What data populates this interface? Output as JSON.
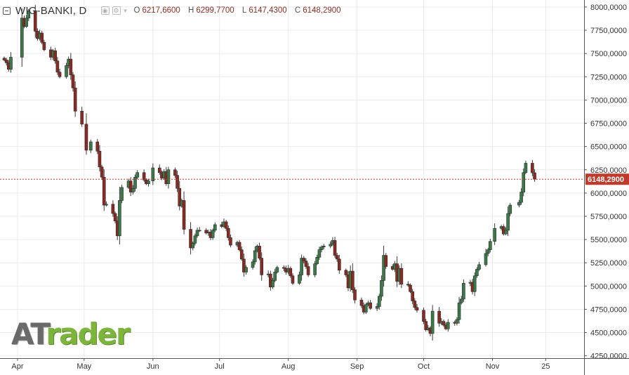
{
  "header": {
    "symbol": "WIG-BANKI, D",
    "ohlc": [
      {
        "key": "O",
        "value": "6217,6600"
      },
      {
        "key": "H",
        "value": "6299,7700"
      },
      {
        "key": "L",
        "value": "6147,4300"
      },
      {
        "key": "C",
        "value": "6148,2900"
      }
    ]
  },
  "logo": {
    "part1": "AT",
    "part2": "rader"
  },
  "colors": {
    "up": "#3a7a48",
    "down": "#8b2a22",
    "grid": "#ebebeb",
    "price_line": "#c0392b",
    "axis_text": "#333333"
  },
  "chart_data": {
    "type": "candlestick",
    "title": "WIG-BANKI, D",
    "last_price": 6148.29,
    "last_price_label": "6148,2900",
    "ylim": [
      4225,
      8075
    ],
    "y_ticks": [
      4250,
      4500,
      4750,
      5000,
      5250,
      5500,
      5750,
      6000,
      6250,
      6500,
      6750,
      7000,
      7250,
      7500,
      7750,
      8000
    ],
    "y_tick_labels": [
      "4250,0000",
      "4500,0000",
      "4750,0000",
      "5000,0000",
      "5250,0000",
      "5500,0000",
      "5750,0000",
      "6000,0000",
      "6250,0000",
      "6500,0000",
      "6750,0000",
      "7000,0000",
      "7250,0000",
      "7500,0000",
      "7750,0000",
      "8000,0000"
    ],
    "x_range": [
      "2018-03-26",
      "2018-11-29"
    ],
    "x_ticks": [
      {
        "date": "2018-04-01",
        "label": "Apr"
      },
      {
        "date": "2018-05-01",
        "label": "May"
      },
      {
        "date": "2018-06-01",
        "label": "Jun"
      },
      {
        "date": "2018-07-01",
        "label": "Jul"
      },
      {
        "date": "2018-08-01",
        "label": "Aug"
      },
      {
        "date": "2018-09-01",
        "label": "Sep"
      },
      {
        "date": "2018-10-01",
        "label": "Oct"
      },
      {
        "date": "2018-11-01",
        "label": "Nov"
      },
      {
        "date": "2018-11-25",
        "label": "25"
      }
    ],
    "grid": true,
    "closes": [
      [
        "2018-03-26",
        7430
      ],
      [
        "2018-03-27",
        7400
      ],
      [
        "2018-03-28",
        7330
      ],
      [
        "2018-03-29",
        7460
      ],
      [
        "2018-04-03",
        7880
      ],
      [
        "2018-04-04",
        7790
      ],
      [
        "2018-04-05",
        7880
      ],
      [
        "2018-04-06",
        7960
      ],
      [
        "2018-04-09",
        7740
      ],
      [
        "2018-04-10",
        7660
      ],
      [
        "2018-04-11",
        7720
      ],
      [
        "2018-04-12",
        7620
      ],
      [
        "2018-04-13",
        7540
      ],
      [
        "2018-04-16",
        7460
      ],
      [
        "2018-04-17",
        7530
      ],
      [
        "2018-04-18",
        7420
      ],
      [
        "2018-04-19",
        7300
      ],
      [
        "2018-04-20",
        7250
      ],
      [
        "2018-04-23",
        7370
      ],
      [
        "2018-04-24",
        7440
      ],
      [
        "2018-04-25",
        7270
      ],
      [
        "2018-04-26",
        7130
      ],
      [
        "2018-04-27",
        6880
      ],
      [
        "2018-04-30",
        6740
      ],
      [
        "2018-05-02",
        6460
      ],
      [
        "2018-05-04",
        6550
      ],
      [
        "2018-05-07",
        6450
      ],
      [
        "2018-05-08",
        6280
      ],
      [
        "2018-05-09",
        6170
      ],
      [
        "2018-05-10",
        5870
      ],
      [
        "2018-05-11",
        5880
      ],
      [
        "2018-05-14",
        5780
      ],
      [
        "2018-05-15",
        5700
      ],
      [
        "2018-05-16",
        5540
      ],
      [
        "2018-05-17",
        5920
      ],
      [
        "2018-05-18",
        6060
      ],
      [
        "2018-05-21",
        6130
      ],
      [
        "2018-05-22",
        6010
      ],
      [
        "2018-05-23",
        6050
      ],
      [
        "2018-05-24",
        6170
      ],
      [
        "2018-05-25",
        6220
      ],
      [
        "2018-05-28",
        6140
      ],
      [
        "2018-05-29",
        6100
      ],
      [
        "2018-05-30",
        6130
      ],
      [
        "2018-06-01",
        6270
      ],
      [
        "2018-06-04",
        6220
      ],
      [
        "2018-06-05",
        6160
      ],
      [
        "2018-06-06",
        6230
      ],
      [
        "2018-06-07",
        6100
      ],
      [
        "2018-06-08",
        6250
      ],
      [
        "2018-06-11",
        6190
      ],
      [
        "2018-06-12",
        6050
      ],
      [
        "2018-06-13",
        5860
      ],
      [
        "2018-06-14",
        5920
      ],
      [
        "2018-06-15",
        5610
      ],
      [
        "2018-06-18",
        5410
      ],
      [
        "2018-06-19",
        5460
      ],
      [
        "2018-06-20",
        5540
      ],
      [
        "2018-06-21",
        5600
      ],
      [
        "2018-06-22",
        5600
      ],
      [
        "2018-06-25",
        5570
      ],
      [
        "2018-06-26",
        5580
      ],
      [
        "2018-06-27",
        5520
      ],
      [
        "2018-06-28",
        5600
      ],
      [
        "2018-06-29",
        5660
      ],
      [
        "2018-07-02",
        5640
      ],
      [
        "2018-07-03",
        5690
      ],
      [
        "2018-07-04",
        5620
      ],
      [
        "2018-07-05",
        5520
      ],
      [
        "2018-07-06",
        5440
      ],
      [
        "2018-07-09",
        5470
      ],
      [
        "2018-07-10",
        5390
      ],
      [
        "2018-07-11",
        5290
      ],
      [
        "2018-07-12",
        5150
      ],
      [
        "2018-07-13",
        5200
      ],
      [
        "2018-07-16",
        5260
      ],
      [
        "2018-07-17",
        5380
      ],
      [
        "2018-07-18",
        5430
      ],
      [
        "2018-07-19",
        5300
      ],
      [
        "2018-07-20",
        5120
      ],
      [
        "2018-07-23",
        5130
      ],
      [
        "2018-07-24",
        4990
      ],
      [
        "2018-07-25",
        5060
      ],
      [
        "2018-07-26",
        5150
      ],
      [
        "2018-07-27",
        5200
      ],
      [
        "2018-07-30",
        5190
      ],
      [
        "2018-07-31",
        5150
      ],
      [
        "2018-08-01",
        5190
      ],
      [
        "2018-08-02",
        5110
      ],
      [
        "2018-08-03",
        5030
      ],
      [
        "2018-08-06",
        5120
      ],
      [
        "2018-08-07",
        5300
      ],
      [
        "2018-08-08",
        5270
      ],
      [
        "2018-08-09",
        5210
      ],
      [
        "2018-08-10",
        5120
      ],
      [
        "2018-08-13",
        5240
      ],
      [
        "2018-08-14",
        5310
      ],
      [
        "2018-08-15",
        5390
      ],
      [
        "2018-08-16",
        5420
      ],
      [
        "2018-08-17",
        5430
      ],
      [
        "2018-08-20",
        5450
      ],
      [
        "2018-08-21",
        5490
      ],
      [
        "2018-08-22",
        5330
      ],
      [
        "2018-08-23",
        5290
      ],
      [
        "2018-08-24",
        5170
      ],
      [
        "2018-08-27",
        5120
      ],
      [
        "2018-08-28",
        4980
      ],
      [
        "2018-08-29",
        5160
      ],
      [
        "2018-08-30",
        4960
      ],
      [
        "2018-08-31",
        4850
      ],
      [
        "2018-09-03",
        4790
      ],
      [
        "2018-09-04",
        4720
      ],
      [
        "2018-09-05",
        4800
      ],
      [
        "2018-09-06",
        4820
      ],
      [
        "2018-09-07",
        4760
      ],
      [
        "2018-09-10",
        4780
      ],
      [
        "2018-09-11",
        4890
      ],
      [
        "2018-09-12",
        5060
      ],
      [
        "2018-09-13",
        5330
      ],
      [
        "2018-09-14",
        5210
      ],
      [
        "2018-09-17",
        5180
      ],
      [
        "2018-09-18",
        5240
      ],
      [
        "2018-09-19",
        5050
      ],
      [
        "2018-09-20",
        5190
      ],
      [
        "2018-09-21",
        5020
      ],
      [
        "2018-09-24",
        5010
      ],
      [
        "2018-09-25",
        4940
      ],
      [
        "2018-09-26",
        4840
      ],
      [
        "2018-09-27",
        4770
      ],
      [
        "2018-09-28",
        4740
      ],
      [
        "2018-10-01",
        4620
      ],
      [
        "2018-10-02",
        4530
      ],
      [
        "2018-10-03",
        4550
      ],
      [
        "2018-10-04",
        4490
      ],
      [
        "2018-10-05",
        4730
      ],
      [
        "2018-10-08",
        4600
      ],
      [
        "2018-10-09",
        4620
      ],
      [
        "2018-10-10",
        4580
      ],
      [
        "2018-10-11",
        4540
      ],
      [
        "2018-10-12",
        4610
      ],
      [
        "2018-10-15",
        4600
      ],
      [
        "2018-10-16",
        4640
      ],
      [
        "2018-10-17",
        4820
      ],
      [
        "2018-10-18",
        4860
      ],
      [
        "2018-10-19",
        5030
      ],
      [
        "2018-10-22",
        5040
      ],
      [
        "2018-10-23",
        4940
      ],
      [
        "2018-10-24",
        5110
      ],
      [
        "2018-10-25",
        5180
      ],
      [
        "2018-10-26",
        5230
      ],
      [
        "2018-10-29",
        5350
      ],
      [
        "2018-10-30",
        5390
      ],
      [
        "2018-10-31",
        5480
      ],
      [
        "2018-11-02",
        5620
      ],
      [
        "2018-11-05",
        5640
      ],
      [
        "2018-11-06",
        5560
      ],
      [
        "2018-11-07",
        5600
      ],
      [
        "2018-11-08",
        5780
      ],
      [
        "2018-11-09",
        5870
      ],
      [
        "2018-11-13",
        5900
      ],
      [
        "2018-11-14",
        6010
      ],
      [
        "2018-11-15",
        6220
      ],
      [
        "2018-11-16",
        6320
      ],
      [
        "2018-11-19",
        6217.66
      ],
      [
        "2018-11-20",
        6148.29
      ]
    ]
  }
}
